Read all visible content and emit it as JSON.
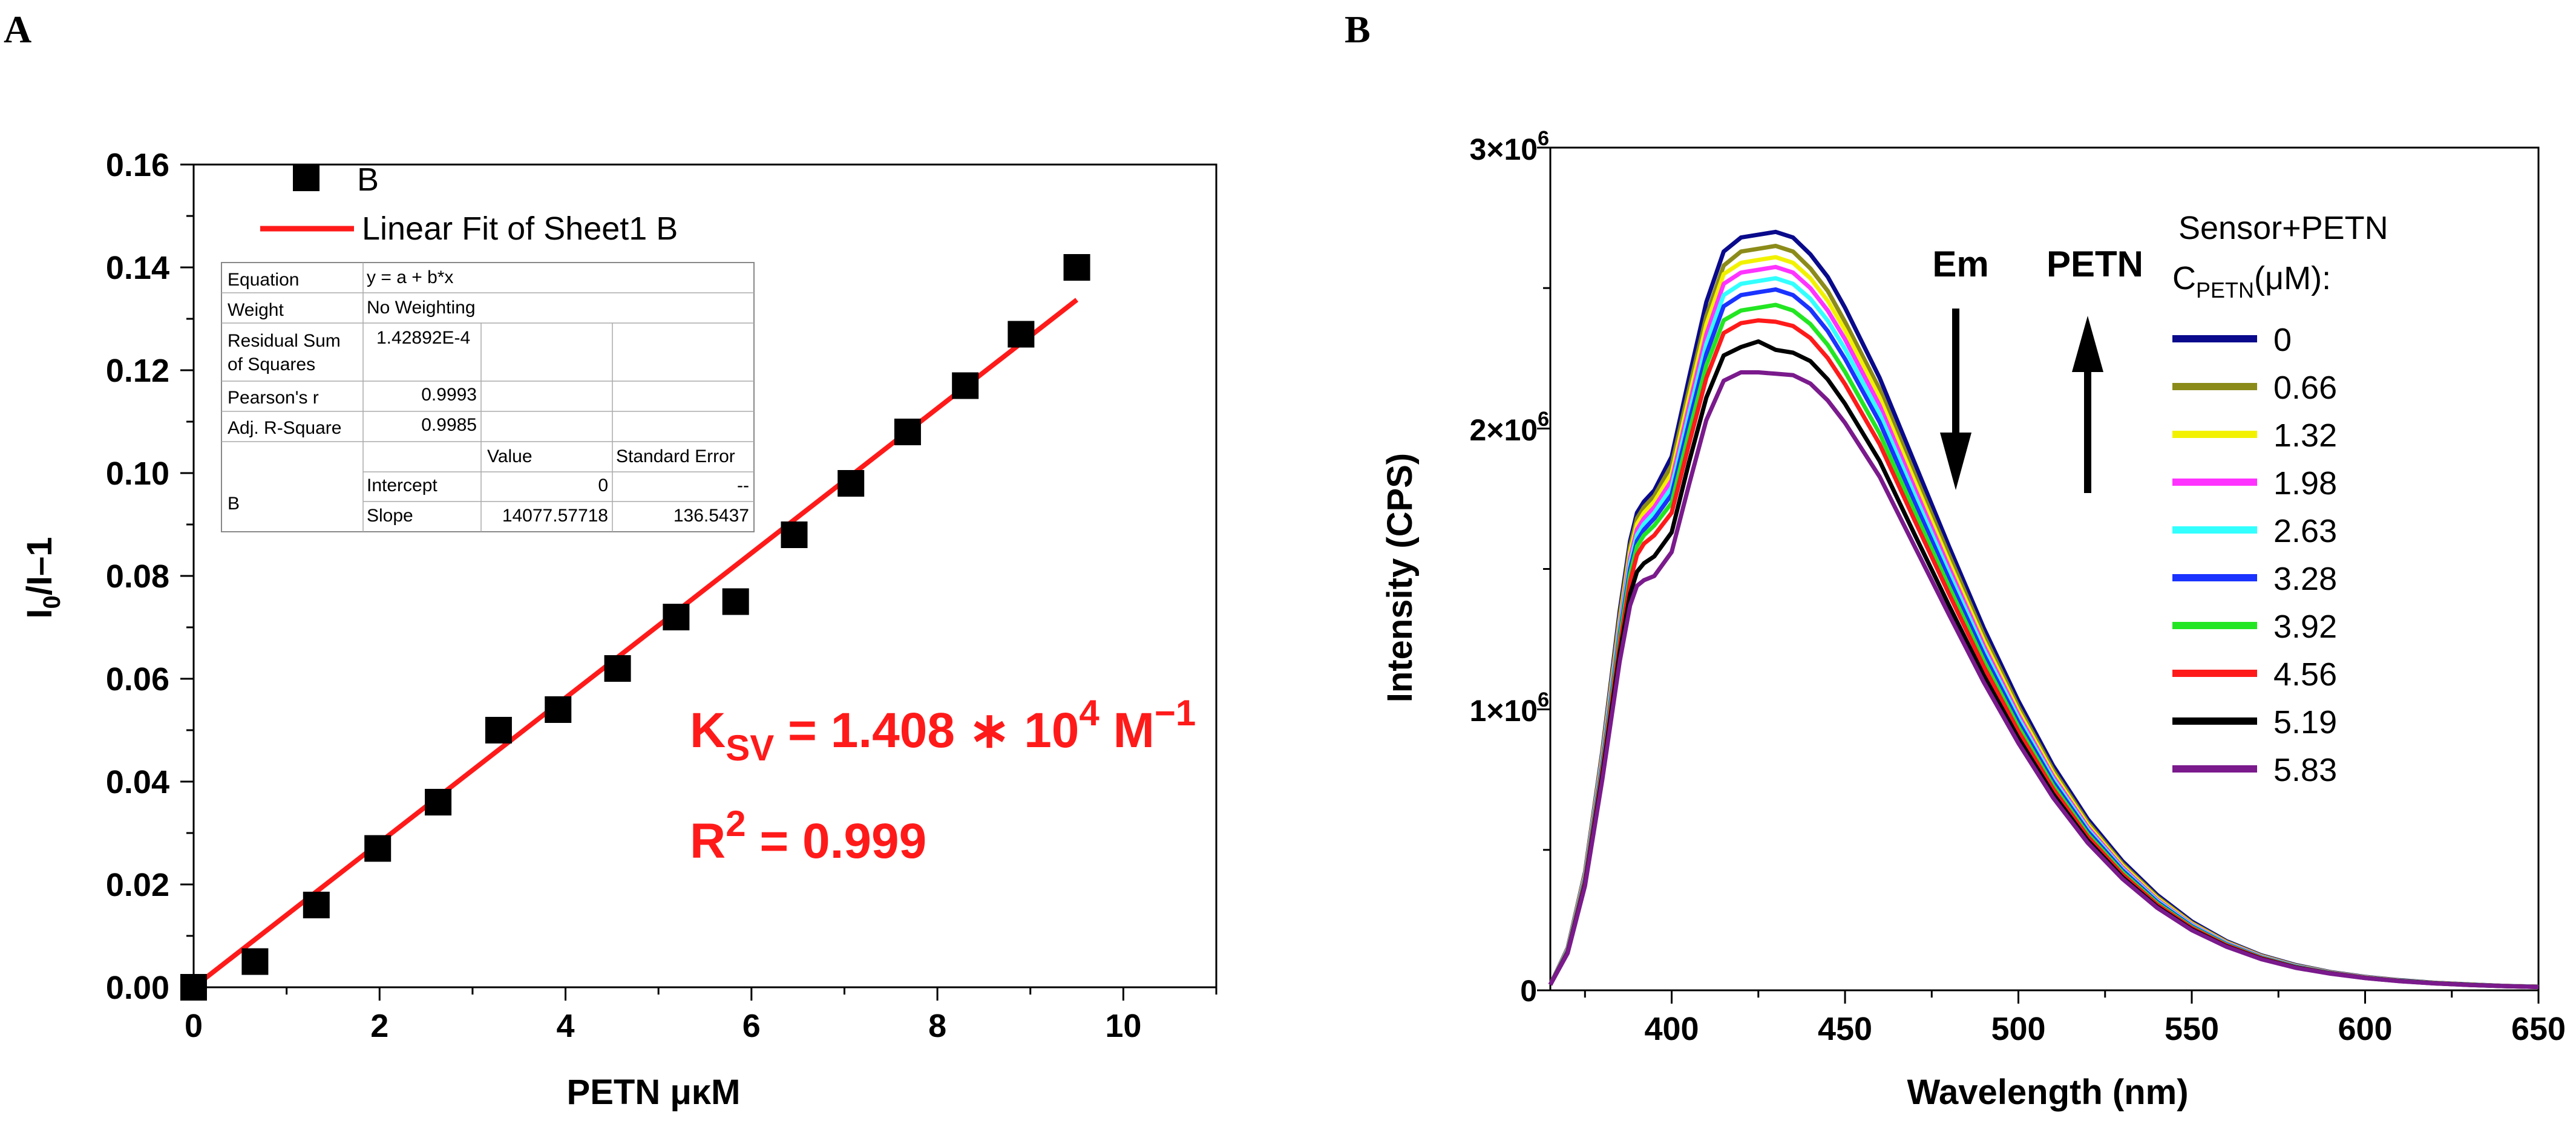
{
  "panelA": {
    "letter": "A",
    "ylabel_main": "I",
    "ylabel_sub": "0",
    "ylabel_rest": "/I–1",
    "xlabel": "PETN μκM",
    "legend": {
      "points_label": "B",
      "line_label": "Linear Fit of Sheet1 B"
    },
    "fit_table": {
      "equation_label": "Equation",
      "equation_value": "y = a + b*x",
      "weight_label": "Weight",
      "weight_value": "No Weighting",
      "rss_label_1": "Residual Sum",
      "rss_label_2": "of Squares",
      "rss_value": "1.42892E-4",
      "pearson_label": "Pearson's r",
      "pearson_value": "0.9993",
      "adjr_label": "Adj. R-Square",
      "adjr_value": "0.9985",
      "value_header": "Value",
      "stderr_header": "Standard Error",
      "row_label": "B",
      "intercept_label": "Intercept",
      "intercept_value": "0",
      "intercept_err": "--",
      "slope_label": "Slope",
      "slope_value": "14077.57718",
      "slope_err": "136.5437"
    },
    "ksv_main": "K",
    "ksv_sub": "SV",
    "ksv_rest": " = 1.408 ∗ 10",
    "ksv_exp": "4",
    "ksv_unit": " M",
    "ksv_unit_exp": "−1",
    "r2_main": "R",
    "r2_exp": "2",
    "r2_rest": " = 0.999",
    "colors": {
      "points": "#000000",
      "fit": "#ff1a1a",
      "annotation": "#ff1a1a"
    }
  },
  "panelB": {
    "letter": "B",
    "ylabel": "Intensity (CPS)",
    "xlabel": "Wavelength (nm)",
    "ytick_labels": [
      {
        "mant": "0",
        "exp": ""
      },
      {
        "mant": "1×10",
        "exp": "6"
      },
      {
        "mant": "2×10",
        "exp": "6"
      },
      {
        "mant": "3×10",
        "exp": "6"
      }
    ],
    "arrow_em": "Em",
    "arrow_petn": "PETN",
    "legend_title_1": "Sensor+PETN",
    "legend_title_2_main": "C",
    "legend_title_2_sub": "PETN",
    "legend_title_2_rest": "(μM):"
  },
  "chart_data": [
    {
      "type": "scatter",
      "xlim": [
        0,
        11
      ],
      "ylim": [
        0,
        0.16
      ],
      "xticks": [
        0,
        2,
        4,
        6,
        8,
        10
      ],
      "yticks": [
        0.0,
        0.02,
        0.04,
        0.06,
        0.08,
        0.1,
        0.12,
        0.14,
        0.16
      ],
      "ytick_labels": [
        "0.00",
        "0.02",
        "0.04",
        "0.06",
        "0.08",
        "0.10",
        "0.12",
        "0.14",
        "0.16"
      ],
      "series": [
        {
          "name": "B",
          "x": [
            0,
            0.66,
            1.32,
            1.98,
            2.63,
            3.28,
            3.92,
            4.56,
            5.19,
            5.83,
            6.46,
            7.07,
            7.68,
            8.3,
            8.9,
            9.5
          ],
          "y": [
            0.0,
            0.005,
            0.016,
            0.027,
            0.036,
            0.05,
            0.054,
            0.062,
            0.072,
            0.075,
            0.088,
            0.098,
            0.108,
            0.117,
            0.127,
            0.14
          ]
        },
        {
          "name": "Linear Fit of Sheet1 B",
          "x": [
            0,
            9.5
          ],
          "y": [
            0.0,
            0.1337
          ]
        }
      ],
      "grid": false,
      "legend_position": "top-left"
    },
    {
      "type": "line",
      "xlim": [
        365,
        650
      ],
      "ylim": [
        0,
        3000000
      ],
      "xticks": [
        400,
        450,
        500,
        550,
        600,
        650
      ],
      "yticks": [
        0,
        1000000,
        2000000,
        3000000
      ],
      "x": [
        365,
        370,
        375,
        380,
        385,
        388,
        390,
        392,
        395,
        400,
        405,
        410,
        415,
        420,
        425,
        430,
        435,
        440,
        445,
        450,
        460,
        470,
        480,
        490,
        500,
        510,
        520,
        530,
        540,
        550,
        560,
        570,
        580,
        590,
        600,
        610,
        620,
        630,
        640,
        650
      ],
      "series": [
        {
          "name": "0",
          "color": "#0a0a8c",
          "values": [
            20000,
            150000,
            420000,
            850000,
            1350000,
            1600000,
            1700000,
            1740000,
            1780000,
            1900000,
            2180000,
            2450000,
            2630000,
            2680000,
            2690000,
            2700000,
            2680000,
            2620000,
            2540000,
            2430000,
            2180000,
            1880000,
            1580000,
            1290000,
            1030000,
            800000,
            610000,
            460000,
            340000,
            245000,
            175000,
            125000,
            90000,
            65000,
            48000,
            36000,
            27000,
            21000,
            16000,
            13000
          ]
        },
        {
          "name": "0.66",
          "color": "#8b8b1a",
          "values": [
            20000,
            148000,
            415000,
            840000,
            1330000,
            1580000,
            1680000,
            1720000,
            1760000,
            1870000,
            2140000,
            2400000,
            2580000,
            2630000,
            2640000,
            2650000,
            2630000,
            2570000,
            2490000,
            2380000,
            2140000,
            1840000,
            1550000,
            1265000,
            1010000,
            785000,
            598000,
            451000,
            333000,
            240000,
            172000,
            123000,
            88000,
            64000,
            47000,
            35000,
            26500,
            20500,
            15800,
            12800
          ]
        },
        {
          "name": "1.32",
          "color": "#f2f200",
          "values": [
            20000,
            146000,
            410000,
            830000,
            1310000,
            1560000,
            1660000,
            1700000,
            1740000,
            1840000,
            2110000,
            2370000,
            2550000,
            2590000,
            2600000,
            2610000,
            2590000,
            2535000,
            2455000,
            2350000,
            2110000,
            1815000,
            1525000,
            1245000,
            995000,
            773000,
            589000,
            444000,
            328000,
            237000,
            170000,
            121000,
            87000,
            63000,
            46500,
            34500,
            26000,
            20200,
            15600,
            12600
          ]
        },
        {
          "name": "1.98",
          "color": "#ff33ff",
          "values": [
            20000,
            144000,
            405000,
            820000,
            1295000,
            1540000,
            1640000,
            1680000,
            1720000,
            1815000,
            2080000,
            2335000,
            2515000,
            2555000,
            2565000,
            2575000,
            2555000,
            2500000,
            2420000,
            2318000,
            2082000,
            1790000,
            1505000,
            1228000,
            981000,
            762000,
            581000,
            438000,
            323000,
            234000,
            168000,
            120000,
            86000,
            62500,
            46000,
            34200,
            25800,
            20000,
            15400,
            12500
          ]
        },
        {
          "name": "2.63",
          "color": "#33ffff",
          "values": [
            20000,
            142000,
            400000,
            810000,
            1280000,
            1520000,
            1620000,
            1660000,
            1700000,
            1790000,
            2050000,
            2300000,
            2475000,
            2515000,
            2525000,
            2535000,
            2515000,
            2462000,
            2384000,
            2283000,
            2052000,
            1765000,
            1485000,
            1212000,
            968000,
            752000,
            573000,
            432000,
            319000,
            231000,
            166000,
            118500,
            85000,
            62000,
            45500,
            33900,
            25600,
            19800,
            15300,
            12400
          ]
        },
        {
          "name": "3.28",
          "color": "#1a33ff",
          "values": [
            20000,
            140000,
            395000,
            800000,
            1265000,
            1500000,
            1600000,
            1640000,
            1680000,
            1765000,
            2020000,
            2265000,
            2435000,
            2475000,
            2485000,
            2495000,
            2475000,
            2424000,
            2347000,
            2248000,
            2022000,
            1740000,
            1464000,
            1196000,
            955000,
            742000,
            566000,
            427000,
            315000,
            228000,
            164000,
            117000,
            84000,
            61500,
            45000,
            33600,
            25400,
            19600,
            15200,
            12300
          ]
        },
        {
          "name": "3.92",
          "color": "#22e622",
          "values": [
            20000,
            138000,
            390000,
            790000,
            1250000,
            1480000,
            1580000,
            1620000,
            1655000,
            1735000,
            1985000,
            2225000,
            2385000,
            2420000,
            2430000,
            2440000,
            2420000,
            2372000,
            2298000,
            2202000,
            1982000,
            1707000,
            1437000,
            1174000,
            938000,
            729000,
            556000,
            420000,
            310000,
            225000,
            162000,
            116000,
            83000,
            61000,
            44700,
            33300,
            25200,
            19500,
            15100,
            12200
          ]
        },
        {
          "name": "4.56",
          "color": "#ff1a1a",
          "values": [
            20000,
            136000,
            385000,
            780000,
            1230000,
            1455000,
            1550000,
            1590000,
            1620000,
            1700000,
            1945000,
            2180000,
            2340000,
            2375000,
            2385000,
            2380000,
            2365000,
            2322000,
            2251000,
            2158000,
            1944000,
            1675000,
            1411000,
            1153000,
            922000,
            717000,
            547000,
            413000,
            305000,
            222000,
            160000,
            114500,
            82000,
            60500,
            44300,
            33000,
            25000,
            19300,
            15000,
            12100
          ]
        },
        {
          "name": "5.19",
          "color": "#000000",
          "values": [
            20000,
            134000,
            378000,
            765000,
            1200000,
            1410000,
            1490000,
            1520000,
            1545000,
            1630000,
            1880000,
            2110000,
            2260000,
            2290000,
            2310000,
            2280000,
            2270000,
            2240000,
            2175000,
            2088000,
            1884000,
            1625000,
            1370000,
            1121000,
            898000,
            699000,
            534000,
            403000,
            298000,
            217000,
            157000,
            112500,
            81000,
            59800,
            43800,
            32700,
            24800,
            19200,
            14900,
            12000
          ]
        },
        {
          "name": "5.83",
          "color": "#7a1a8c",
          "values": [
            20000,
            132000,
            372000,
            750000,
            1170000,
            1370000,
            1440000,
            1460000,
            1475000,
            1560000,
            1800000,
            2030000,
            2170000,
            2200000,
            2200000,
            2195000,
            2190000,
            2160000,
            2100000,
            2020000,
            1828000,
            1582000,
            1337000,
            1097000,
            880000,
            686000,
            525000,
            397000,
            294000,
            214000,
            155000,
            111000,
            80000,
            59200,
            43400,
            32400,
            24600,
            19000,
            14800,
            11900
          ]
        }
      ],
      "grid": false,
      "legend_position": "right"
    }
  ]
}
